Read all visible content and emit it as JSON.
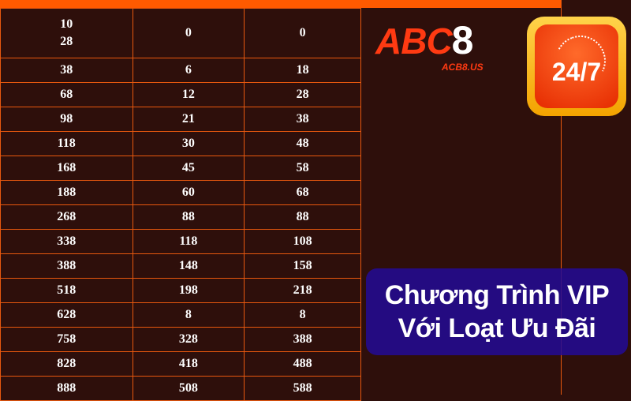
{
  "table": {
    "first_row": {
      "col1_top": "10",
      "col1_bottom": "28",
      "col2": "0",
      "col3": "0"
    },
    "rows": [
      [
        "38",
        "6",
        "18"
      ],
      [
        "68",
        "12",
        "28"
      ],
      [
        "98",
        "21",
        "38"
      ],
      [
        "118",
        "30",
        "48"
      ],
      [
        "168",
        "45",
        "58"
      ],
      [
        "188",
        "60",
        "68"
      ],
      [
        "268",
        "88",
        "88"
      ],
      [
        "338",
        "118",
        "108"
      ],
      [
        "388",
        "148",
        "158"
      ],
      [
        "518",
        "198",
        "218"
      ],
      [
        "628",
        "8",
        "8"
      ],
      [
        "758",
        "328",
        "388"
      ],
      [
        "828",
        "418",
        "488"
      ],
      [
        "888",
        "508",
        "588"
      ]
    ]
  },
  "logo": {
    "brand": "ABC8",
    "domain": "ACB8.US"
  },
  "support_badge": {
    "text": "24/7",
    "icon": "clock-24-7-icon"
  },
  "banner": {
    "title": "Chương Trình VIP Với Loạt Ưu Đãi"
  },
  "colors": {
    "background": "#2e0f0b",
    "grid": "#e8580e",
    "header": "#ff5a00",
    "banner": "#220a96"
  }
}
